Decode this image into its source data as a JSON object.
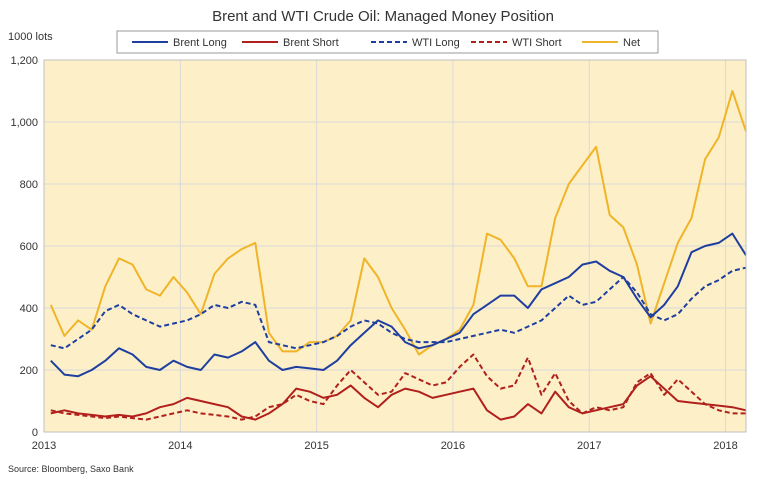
{
  "chart_data": {
    "type": "line",
    "title": "Brent and WTI Crude Oil: Managed Money Position",
    "ylabel": "1000 lots",
    "source": "Source: Bloomberg, Saxo Bank",
    "ylim": [
      0,
      1200
    ],
    "xlim": [
      2013.0,
      2018.15
    ],
    "grid": true,
    "legend_placement": "top",
    "y_ticks": [
      0,
      200,
      400,
      600,
      800,
      1000,
      1200
    ],
    "y_tick_labels": [
      "0",
      "200",
      "400",
      "600",
      "800",
      "1,000",
      "1,200"
    ],
    "x_ticks": [
      2013,
      2014,
      2015,
      2016,
      2017,
      2018
    ],
    "x_tick_labels": [
      "2013",
      "2014",
      "2015",
      "2016",
      "2017",
      "2018"
    ],
    "colors": {
      "plot_background": "#fdf0c8",
      "grid": "#d9d9d9"
    },
    "series": [
      {
        "name": "Brent Long",
        "color": "#1f3fa0",
        "dash": "solid",
        "x": [
          2013.05,
          2013.15,
          2013.25,
          2013.35,
          2013.45,
          2013.55,
          2013.65,
          2013.75,
          2013.85,
          2013.95,
          2014.05,
          2014.15,
          2014.25,
          2014.35,
          2014.45,
          2014.55,
          2014.65,
          2014.75,
          2014.85,
          2014.95,
          2015.05,
          2015.15,
          2015.25,
          2015.35,
          2015.45,
          2015.55,
          2015.65,
          2015.75,
          2015.85,
          2015.95,
          2016.05,
          2016.15,
          2016.25,
          2016.35,
          2016.45,
          2016.55,
          2016.65,
          2016.75,
          2016.85,
          2016.95,
          2017.05,
          2017.15,
          2017.25,
          2017.35,
          2017.45,
          2017.55,
          2017.65,
          2017.75,
          2017.85,
          2017.95,
          2018.05,
          2018.15
        ],
        "y": [
          230,
          185,
          180,
          200,
          230,
          270,
          250,
          210,
          200,
          230,
          210,
          200,
          250,
          240,
          260,
          290,
          230,
          200,
          210,
          205,
          200,
          230,
          280,
          320,
          360,
          340,
          290,
          270,
          280,
          300,
          320,
          380,
          410,
          440,
          440,
          400,
          460,
          480,
          500,
          540,
          550,
          520,
          500,
          430,
          370,
          410,
          470,
          580,
          600,
          610,
          640,
          570
        ]
      },
      {
        "name": "Brent Short",
        "color": "#b0201c",
        "dash": "solid",
        "x": [
          2013.05,
          2013.15,
          2013.25,
          2013.35,
          2013.45,
          2013.55,
          2013.65,
          2013.75,
          2013.85,
          2013.95,
          2014.05,
          2014.15,
          2014.25,
          2014.35,
          2014.45,
          2014.55,
          2014.65,
          2014.75,
          2014.85,
          2014.95,
          2015.05,
          2015.15,
          2015.25,
          2015.35,
          2015.45,
          2015.55,
          2015.65,
          2015.75,
          2015.85,
          2015.95,
          2016.05,
          2016.15,
          2016.25,
          2016.35,
          2016.45,
          2016.55,
          2016.65,
          2016.75,
          2016.85,
          2016.95,
          2017.05,
          2017.15,
          2017.25,
          2017.35,
          2017.45,
          2017.55,
          2017.65,
          2017.75,
          2017.85,
          2017.95,
          2018.05,
          2018.15
        ],
        "y": [
          60,
          70,
          60,
          55,
          50,
          55,
          50,
          60,
          80,
          90,
          110,
          100,
          90,
          80,
          50,
          40,
          60,
          90,
          140,
          130,
          110,
          120,
          150,
          110,
          80,
          120,
          140,
          130,
          110,
          120,
          130,
          140,
          70,
          40,
          50,
          90,
          60,
          130,
          80,
          60,
          70,
          80,
          90,
          150,
          180,
          140,
          100,
          95,
          90,
          85,
          80,
          70
        ]
      },
      {
        "name": "WTI Long",
        "color": "#1f3fa0",
        "dash": "dashed",
        "x": [
          2013.05,
          2013.15,
          2013.25,
          2013.35,
          2013.45,
          2013.55,
          2013.65,
          2013.75,
          2013.85,
          2013.95,
          2014.05,
          2014.15,
          2014.25,
          2014.35,
          2014.45,
          2014.55,
          2014.65,
          2014.75,
          2014.85,
          2014.95,
          2015.05,
          2015.15,
          2015.25,
          2015.35,
          2015.45,
          2015.55,
          2015.65,
          2015.75,
          2015.85,
          2015.95,
          2016.05,
          2016.15,
          2016.25,
          2016.35,
          2016.45,
          2016.55,
          2016.65,
          2016.75,
          2016.85,
          2016.95,
          2017.05,
          2017.15,
          2017.25,
          2017.35,
          2017.45,
          2017.55,
          2017.65,
          2017.75,
          2017.85,
          2017.95,
          2018.05,
          2018.15
        ],
        "y": [
          280,
          270,
          300,
          330,
          390,
          410,
          380,
          360,
          340,
          350,
          360,
          380,
          410,
          400,
          420,
          410,
          290,
          280,
          270,
          280,
          290,
          310,
          340,
          360,
          350,
          320,
          300,
          290,
          290,
          290,
          300,
          310,
          320,
          330,
          320,
          340,
          360,
          400,
          440,
          410,
          420,
          460,
          500,
          450,
          380,
          360,
          380,
          430,
          470,
          490,
          520,
          530
        ]
      },
      {
        "name": "WTI Short",
        "color": "#b0201c",
        "dash": "dashed",
        "x": [
          2013.05,
          2013.15,
          2013.25,
          2013.35,
          2013.45,
          2013.55,
          2013.65,
          2013.75,
          2013.85,
          2013.95,
          2014.05,
          2014.15,
          2014.25,
          2014.35,
          2014.45,
          2014.55,
          2014.65,
          2014.75,
          2014.85,
          2014.95,
          2015.05,
          2015.15,
          2015.25,
          2015.35,
          2015.45,
          2015.55,
          2015.65,
          2015.75,
          2015.85,
          2015.95,
          2016.05,
          2016.15,
          2016.25,
          2016.35,
          2016.45,
          2016.55,
          2016.65,
          2016.75,
          2016.85,
          2016.95,
          2017.05,
          2017.15,
          2017.25,
          2017.35,
          2017.45,
          2017.55,
          2017.65,
          2017.75,
          2017.85,
          2017.95,
          2018.05,
          2018.15
        ],
        "y": [
          70,
          60,
          55,
          50,
          45,
          50,
          45,
          40,
          50,
          60,
          70,
          60,
          55,
          50,
          40,
          50,
          80,
          90,
          120,
          100,
          90,
          150,
          200,
          160,
          120,
          130,
          190,
          170,
          150,
          160,
          210,
          250,
          180,
          140,
          150,
          240,
          120,
          190,
          100,
          60,
          80,
          70,
          80,
          160,
          190,
          120,
          170,
          130,
          90,
          70,
          60,
          60
        ]
      },
      {
        "name": "Net",
        "color": "#f0b429",
        "dash": "solid",
        "x": [
          2013.05,
          2013.15,
          2013.25,
          2013.35,
          2013.45,
          2013.55,
          2013.65,
          2013.75,
          2013.85,
          2013.95,
          2014.05,
          2014.15,
          2014.25,
          2014.35,
          2014.45,
          2014.55,
          2014.65,
          2014.75,
          2014.85,
          2014.95,
          2015.05,
          2015.15,
          2015.25,
          2015.35,
          2015.45,
          2015.55,
          2015.65,
          2015.75,
          2015.85,
          2015.95,
          2016.05,
          2016.15,
          2016.25,
          2016.35,
          2016.45,
          2016.55,
          2016.65,
          2016.75,
          2016.85,
          2016.95,
          2017.05,
          2017.15,
          2017.25,
          2017.35,
          2017.45,
          2017.55,
          2017.65,
          2017.75,
          2017.85,
          2017.95,
          2018.05,
          2018.15
        ],
        "y": [
          410,
          310,
          360,
          330,
          470,
          560,
          540,
          460,
          440,
          500,
          450,
          380,
          510,
          560,
          590,
          610,
          320,
          260,
          260,
          290,
          290,
          310,
          360,
          560,
          500,
          400,
          330,
          250,
          280,
          300,
          330,
          410,
          640,
          620,
          560,
          470,
          470,
          690,
          800,
          860,
          920,
          700,
          660,
          540,
          350,
          480,
          610,
          690,
          880,
          950,
          1100,
          970
        ]
      }
    ]
  }
}
